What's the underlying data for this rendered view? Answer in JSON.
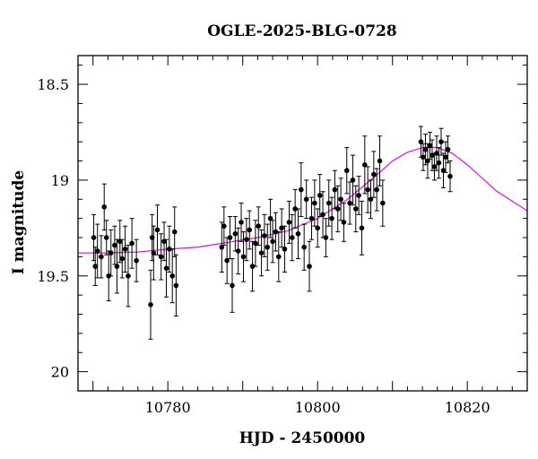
{
  "chart_data": {
    "type": "scatter",
    "title": "OGLE-2025-BLG-0728",
    "xlabel": "HJD - 2450000",
    "ylabel": "I magnitude",
    "xlim": [
      10768,
      10828
    ],
    "ylim": [
      20.1,
      18.35
    ],
    "y_inverted": true,
    "x_ticks": [
      10780,
      10800,
      10820
    ],
    "x_tick_labels": [
      "10780",
      "10800",
      "10820"
    ],
    "y_ticks": [
      18.5,
      19,
      19.5,
      20
    ],
    "y_tick_labels": [
      "18.5",
      "19",
      "19.5",
      "20"
    ],
    "grid": false,
    "colors": {
      "points": "#000000",
      "model": "#e020e0",
      "frame": "#000000"
    },
    "model": {
      "name": "",
      "x": [
        10768,
        10772,
        10776,
        10780,
        10784,
        10788,
        10792,
        10796,
        10800,
        10804,
        10808,
        10810,
        10812,
        10814,
        10815,
        10816,
        10818,
        10820,
        10822,
        10824,
        10826,
        10828
      ],
      "y": [
        19.38,
        19.38,
        19.375,
        19.36,
        19.35,
        19.325,
        19.3,
        19.265,
        19.2,
        19.1,
        18.97,
        18.9,
        18.855,
        18.83,
        18.828,
        18.83,
        18.86,
        18.92,
        18.99,
        19.06,
        19.11,
        19.16
      ]
    },
    "series": [
      {
        "x": [
          10770.1,
          10770.3,
          10770.6,
          10771.1,
          10771.5,
          10771.8,
          10772.1,
          10772.4,
          10772.9,
          10773.2,
          10773.6,
          10773.9,
          10774.3,
          10774.7,
          10775.2,
          10775.8,
          10777.7,
          10777.9,
          10778.1,
          10778.6,
          10779.1,
          10779.5,
          10779.8,
          10780.2,
          10780.6,
          10780.9,
          10781.1
        ],
        "y": [
          19.3,
          19.45,
          19.37,
          19.4,
          19.14,
          19.3,
          19.5,
          19.38,
          19.34,
          19.45,
          19.32,
          19.41,
          19.36,
          19.5,
          19.33,
          19.42,
          19.65,
          19.3,
          19.38,
          19.26,
          19.4,
          19.32,
          19.46,
          19.36,
          19.5,
          19.27,
          19.55
        ],
        "err": [
          0.12,
          0.1,
          0.14,
          0.11,
          0.12,
          0.09,
          0.13,
          0.12,
          0.1,
          0.14,
          0.11,
          0.1,
          0.12,
          0.16,
          0.13,
          0.11,
          0.18,
          0.12,
          0.14,
          0.13,
          0.12,
          0.1,
          0.15,
          0.12,
          0.14,
          0.13,
          0.16
        ]
      },
      {
        "x": [
          10787.2,
          10787.5,
          10787.9,
          10788.3,
          10788.6,
          10789.0,
          10789.4,
          10789.8,
          10790.1,
          10790.5,
          10790.9,
          10791.3,
          10791.7,
          10792.1,
          10792.5,
          10792.9,
          10793.3,
          10793.7,
          10794.0,
          10794.4,
          10794.8,
          10795.2,
          10795.6
        ],
        "y": [
          19.35,
          19.24,
          19.42,
          19.3,
          19.55,
          19.28,
          19.37,
          19.22,
          19.4,
          19.31,
          19.26,
          19.45,
          19.33,
          19.24,
          19.38,
          19.29,
          19.35,
          19.2,
          19.32,
          19.27,
          19.4,
          19.25,
          19.36
        ],
        "err": [
          0.13,
          0.1,
          0.12,
          0.11,
          0.14,
          0.09,
          0.12,
          0.1,
          0.13,
          0.11,
          0.1,
          0.13,
          0.12,
          0.1,
          0.12,
          0.11,
          0.12,
          0.1,
          0.11,
          0.1,
          0.13,
          0.1,
          0.12
        ]
      },
      {
        "x": [
          10796.2,
          10796.6,
          10797.0,
          10797.4,
          10797.8,
          10798.2,
          10798.5,
          10798.9,
          10799.2,
          10799.6,
          10800.0,
          10800.3,
          10800.7,
          10801.1,
          10801.5,
          10801.9,
          10802.3,
          10802.7,
          10803.1,
          10803.5,
          10803.9,
          10804.3,
          10804.7,
          10805.1,
          10805.5,
          10805.9,
          10806.3,
          10806.7,
          10807.1,
          10807.5,
          10807.9,
          10808.3,
          10808.7
        ],
        "y": [
          19.22,
          19.3,
          19.15,
          19.28,
          19.05,
          19.35,
          19.1,
          19.45,
          19.2,
          19.12,
          19.25,
          19.08,
          19.18,
          19.3,
          19.12,
          19.2,
          19.05,
          19.15,
          19.1,
          19.22,
          18.95,
          19.12,
          19.0,
          19.15,
          19.08,
          19.25,
          18.92,
          19.05,
          19.1,
          18.97,
          19.05,
          18.9,
          19.12
        ],
        "err": [
          0.11,
          0.12,
          0.1,
          0.13,
          0.14,
          0.12,
          0.1,
          0.13,
          0.11,
          0.12,
          0.1,
          0.11,
          0.12,
          0.1,
          0.12,
          0.11,
          0.1,
          0.12,
          0.11,
          0.1,
          0.12,
          0.11,
          0.13,
          0.12,
          0.1,
          0.14,
          0.15,
          0.12,
          0.1,
          0.12,
          0.11,
          0.13,
          0.12
        ]
      },
      {
        "x": [
          10813.8,
          10814.1,
          10814.4,
          10814.7,
          10815.0,
          10815.3,
          10815.6,
          10815.9,
          10816.2,
          10816.5,
          10816.8,
          10817.1,
          10817.4,
          10817.7
        ],
        "y": [
          18.8,
          18.88,
          18.84,
          18.9,
          18.82,
          18.87,
          18.93,
          18.86,
          18.91,
          18.8,
          18.95,
          18.88,
          18.84,
          18.98
        ],
        "err": [
          0.08,
          0.07,
          0.08,
          0.09,
          0.07,
          0.08,
          0.07,
          0.09,
          0.08,
          0.07,
          0.09,
          0.08,
          0.07,
          0.08
        ]
      }
    ]
  }
}
